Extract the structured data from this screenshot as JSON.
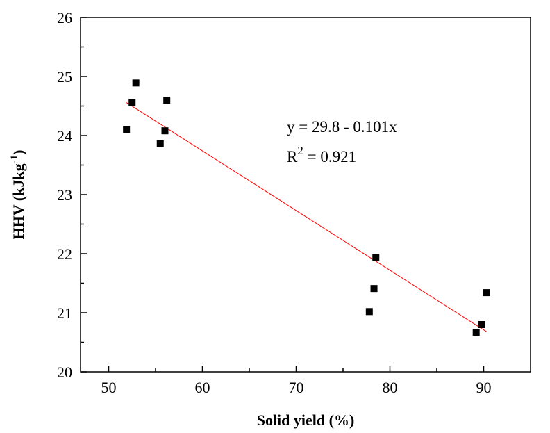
{
  "chart_data": {
    "type": "scatter",
    "xlabel": "Solid yield (%)",
    "ylabel_main": "HHV (kJkg",
    "ylabel_sup": "-1",
    "ylabel_close": ")",
    "xlim": [
      47,
      95
    ],
    "ylim": [
      20,
      26
    ],
    "xticks": [
      50,
      60,
      70,
      80,
      90
    ],
    "yticks": [
      20,
      21,
      22,
      23,
      24,
      25,
      26
    ],
    "grid": false,
    "series": [
      {
        "marker": "square",
        "color": "#000000",
        "points": [
          {
            "x": 51.9,
            "y": 24.1
          },
          {
            "x": 52.5,
            "y": 24.56
          },
          {
            "x": 52.9,
            "y": 24.89
          },
          {
            "x": 55.5,
            "y": 23.86
          },
          {
            "x": 56.0,
            "y": 24.08
          },
          {
            "x": 56.2,
            "y": 24.6
          },
          {
            "x": 77.8,
            "y": 21.02
          },
          {
            "x": 78.3,
            "y": 21.41
          },
          {
            "x": 78.5,
            "y": 21.94
          },
          {
            "x": 89.2,
            "y": 20.67
          },
          {
            "x": 89.8,
            "y": 20.8
          },
          {
            "x": 90.3,
            "y": 21.34
          }
        ]
      }
    ],
    "fit_line": {
      "color": "#ff0000",
      "intercept": 29.8,
      "slope": -0.101,
      "x_start": 51.9,
      "x_end": 90.3
    },
    "annotation": {
      "equation": "y = 29.8 - 0.101x",
      "r2_prefix": "R",
      "r2_sup": "2",
      "r2_value": " = 0.921"
    }
  }
}
